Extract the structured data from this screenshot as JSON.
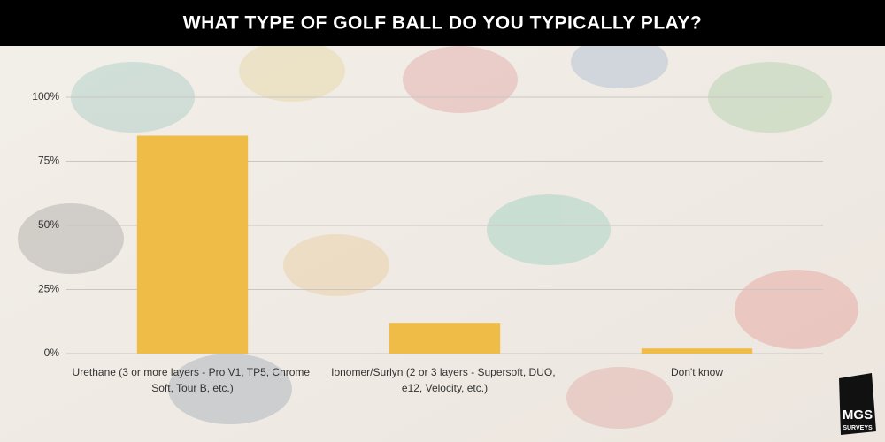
{
  "chart_data": {
    "type": "bar",
    "title": "WHAT TYPE OF GOLF BALL DO YOU TYPICALLY PLAY?",
    "categories": [
      "Urethane (3 or more layers - Pro V1, TP5, Chrome Soft, Tour B, etc.)",
      "Ionomer/Surlyn (2 or 3 layers - Supersoft, DUO, e12, Velocity, etc.)",
      "Don't know"
    ],
    "values": [
      85,
      12,
      2
    ],
    "color": "#efbd47",
    "ylim": [
      0,
      100
    ],
    "yticks": [
      {
        "value": 0,
        "label": "0%"
      },
      {
        "value": 25,
        "label": "25%"
      },
      {
        "value": 50,
        "label": "50%"
      },
      {
        "value": 75,
        "label": "75%"
      },
      {
        "value": 100,
        "label": "100%"
      }
    ],
    "grid": true
  },
  "logo": {
    "line1": "MGS",
    "line2": "SURVEYS"
  }
}
